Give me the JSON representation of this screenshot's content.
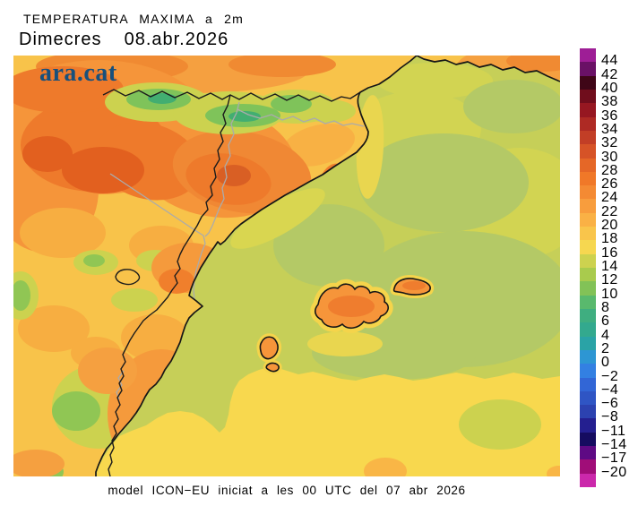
{
  "header": {
    "title": "TEMPERATURA MAXIMA a 2m",
    "date_line": "Dimecres  08.abr.2026"
  },
  "branding": {
    "logo_text": "ara.cat",
    "logo_color": "#17507c"
  },
  "footer": {
    "caption": "model ICON−EU iniciat a les 00 UTC del 07 abr 2026"
  },
  "colorbar": {
    "tick_labels": [
      "44",
      "42",
      "40",
      "38",
      "36",
      "34",
      "32",
      "30",
      "28",
      "26",
      "24",
      "22",
      "20",
      "18",
      "16",
      "14",
      "12",
      "10",
      "8",
      "6",
      "4",
      "2",
      "0",
      "−2",
      "−4",
      "−6",
      "−8",
      "−11",
      "−14",
      "−17",
      "−20"
    ],
    "band_colors": [
      "#9e1e96",
      "#6a1166",
      "#3f0617",
      "#700d1c",
      "#961721",
      "#ae2a24",
      "#c23e26",
      "#d65327",
      "#e56727",
      "#f07828",
      "#f48a33",
      "#f89d3d",
      "#fab145",
      "#f9c54b",
      "#f6d750",
      "#cdd24f",
      "#a9cb4d",
      "#82c257",
      "#59b96d",
      "#3fae80",
      "#33a98e",
      "#2aa3a6",
      "#2d96d3",
      "#3380e2",
      "#3266d6",
      "#2f55c4",
      "#2c42b0",
      "#241f90",
      "#150c60",
      "#5e0a84",
      "#a00d78",
      "#cb28ab"
    ]
  },
  "map_palette": {
    "sea_base": "#c6cf58",
    "sea_green_patch": "#b4c966",
    "sea_light_patch": "#d2d452",
    "sea_south_yellow": "#f8d84e",
    "land_base": "#f8c34a",
    "land_orange": "#f5953a",
    "land_deep_orange": "#ee7a2b",
    "land_hot_orange": "#e2601f",
    "mountain_yellow_green": "#ccd24f",
    "mountain_green": "#7fc35a",
    "island_fill": "#f6953a",
    "island_halo": "#f5d44b",
    "coastline": "#161616",
    "river": "#ababab"
  }
}
